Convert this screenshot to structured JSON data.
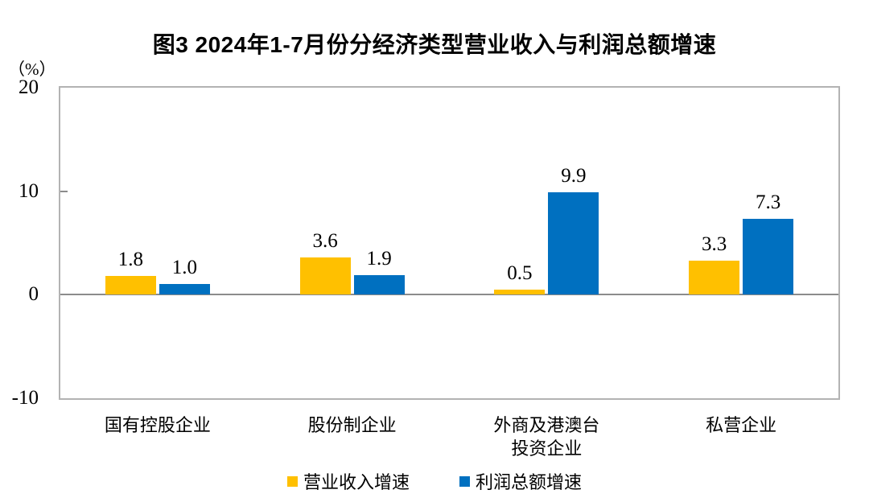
{
  "chart": {
    "title": "图3  2024年1-7月份分经济类型营业收入与利润总额增速",
    "unit_label": "（%）"
  },
  "chart_data": {
    "type": "bar",
    "title": "图3  2024年1-7月份分经济类型营业收入与利润总额增速",
    "categories": [
      "国有控股企业",
      "股份制企业",
      "外商及港澳台\n投资企业",
      "私营企业"
    ],
    "series": [
      {
        "name": "营业收入增速",
        "color": "#FFC000",
        "values": [
          1.8,
          3.6,
          0.5,
          3.3
        ]
      },
      {
        "name": "利润总额增速",
        "color": "#0070C0",
        "values": [
          1.0,
          1.9,
          9.9,
          7.3
        ]
      }
    ],
    "ylabel": "（%）",
    "ylim": [
      -10,
      20
    ],
    "y_ticks": [
      20,
      10,
      0,
      -10
    ],
    "grid": false,
    "legend_position": "bottom",
    "colors": {
      "axis_border": "#b3b3b3",
      "zero_line": "#8c8c8c",
      "text": "#000000"
    }
  }
}
